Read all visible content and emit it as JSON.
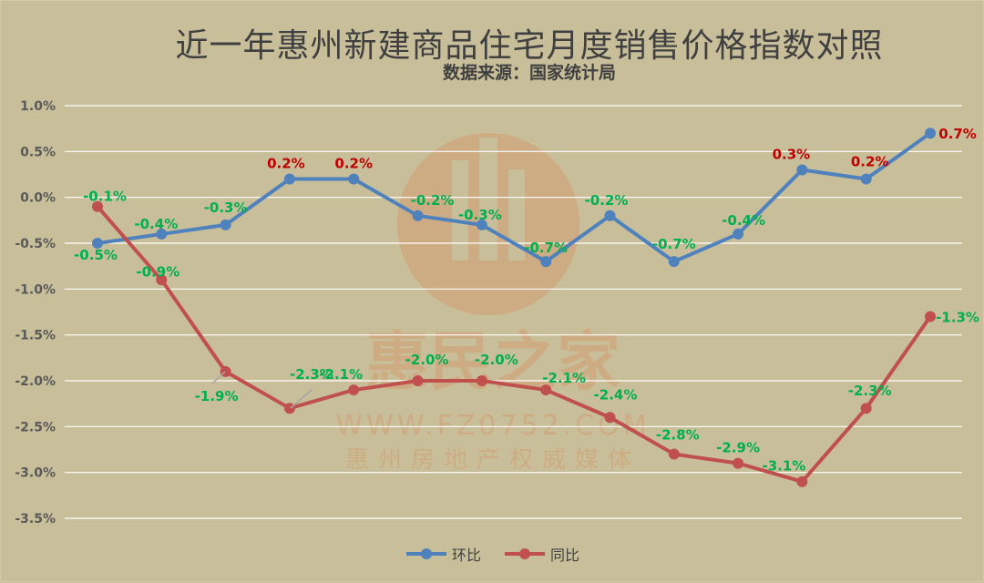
{
  "chart_data": {
    "type": "line",
    "title": "近一年惠州新建商品住宅月度销售价格指数对照",
    "subtitle": "数据来源：国家统计局",
    "ylim": [
      -3.5,
      1.0
    ],
    "yticks": [
      "1.0%",
      "0.5%",
      "0.0%",
      "-0.5%",
      "-1.0%",
      "-1.5%",
      "-2.0%",
      "-2.5%",
      "-3.0%",
      "-3.5%"
    ],
    "grid": true,
    "legend_position": "bottom",
    "series": [
      {
        "name": "环比",
        "color": "#4f81bd",
        "values": [
          -0.5,
          -0.4,
          -0.3,
          0.2,
          0.2,
          -0.2,
          -0.3,
          -0.7,
          -0.2,
          -0.7,
          -0.4,
          0.3,
          0.2,
          0.7
        ],
        "labels": [
          "-0.5%",
          "-0.4%",
          "-0.3%",
          "0.2%",
          "0.2%",
          "-0.2%",
          "-0.3%",
          "-0.7%",
          "-0.2%",
          "-0.7%",
          "-0.4%",
          "0.3%",
          "0.2%",
          "0.7%"
        ]
      },
      {
        "name": "同比",
        "color": "#c0504d",
        "values": [
          -0.1,
          -0.9,
          -1.9,
          -2.3,
          -2.1,
          -2.0,
          -2.0,
          -2.1,
          -2.4,
          -2.8,
          -2.9,
          -3.1,
          -2.3,
          -1.3
        ],
        "labels": [
          "-0.1%",
          "-0.9%",
          "-1.9%",
          "-2.3%",
          "-2.1%",
          "-2.0%",
          "-2.0%",
          "-2.1%",
          "-2.4%",
          "-2.8%",
          "-2.9%",
          "-3.1%",
          "-2.3%",
          "-1.3%"
        ]
      }
    ],
    "label_colors": {
      "positive": "#c00000",
      "negative": "#00b050"
    }
  },
  "watermark": {
    "brand": "惠民之家",
    "url": "WWW.FZ0752.COM",
    "slogan": "惠州房地产权威媒体",
    "color": "#d98a5a"
  }
}
